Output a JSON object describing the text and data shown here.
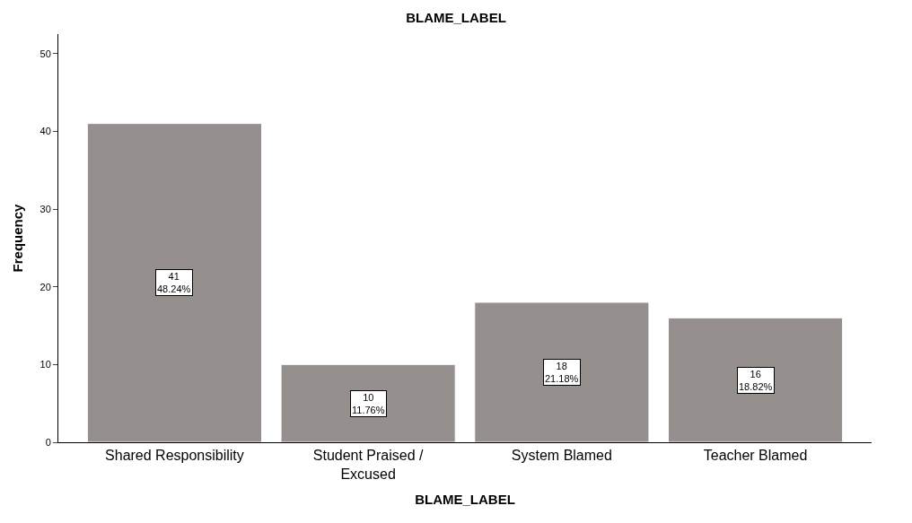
{
  "chart_data": {
    "type": "bar",
    "title": "BLAME_LABEL",
    "xlabel": "BLAME_LABEL",
    "ylabel": "Frequency",
    "categories": [
      "Shared Responsibility",
      "Student Praised / Excused",
      "System Blamed",
      "Teacher Blamed"
    ],
    "values": [
      41,
      10,
      18,
      16
    ],
    "value_labels": [
      "41\n48.24%",
      "10\n11.76%",
      "18\n21.18%",
      "16\n18.82%"
    ],
    "color": "#958f8e",
    "ylim": [
      0,
      52.5
    ],
    "yticks": [
      0,
      10,
      20,
      30,
      40,
      50
    ]
  }
}
